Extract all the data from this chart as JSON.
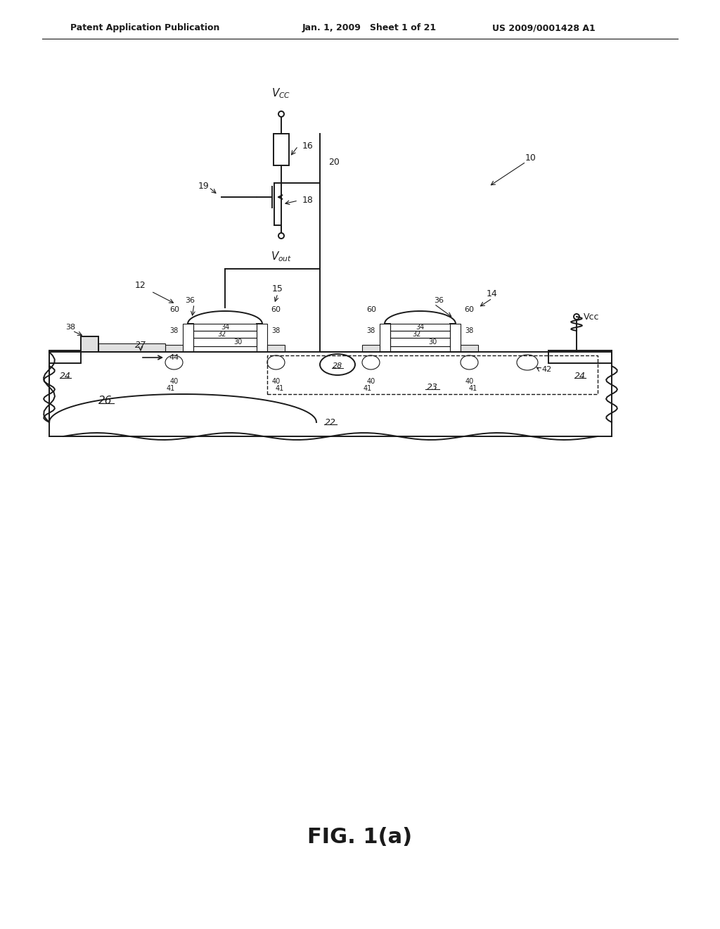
{
  "bg_color": "#ffffff",
  "line_color": "#1a1a1a",
  "header_left": "Patent Application Publication",
  "header_mid": "Jan. 1, 2009   Sheet 1 of 21",
  "header_right": "US 2009/0001428 A1",
  "fig_label": "FIG. 1(a)",
  "title_fontsize": 10,
  "fig_label_fontsize": 22
}
